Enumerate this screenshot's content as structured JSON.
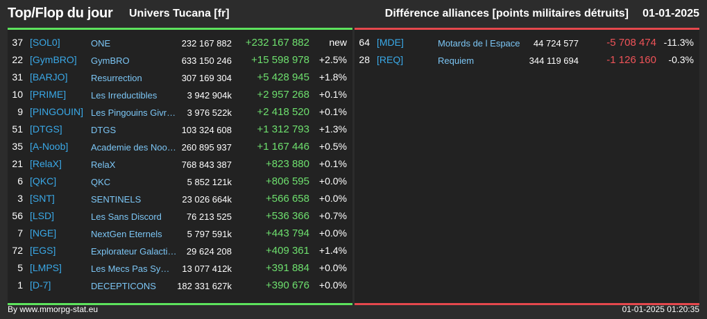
{
  "header": {
    "title": "Top/Flop du jour",
    "universe": "Univers Tucana [fr]",
    "mode": "Différence alliances [points militaires détruits]",
    "date": "01-01-2025"
  },
  "colors": {
    "top_accent": "#5de35d",
    "flop_accent": "#e5484d",
    "tag": "#3aa9e8",
    "name": "#7cc6f5"
  },
  "top": [
    {
      "rank": "37",
      "tag": "[SOL0]",
      "name": "ONE",
      "points": "232 167 882",
      "diff": "+232 167 882",
      "pct": "new"
    },
    {
      "rank": "22",
      "tag": "[GymBRO]",
      "name": "GymBRO",
      "points": "633 150 246",
      "diff": "+15 598 978",
      "pct": "+2.5%"
    },
    {
      "rank": "31",
      "tag": "[BARJO]",
      "name": "Resurrection",
      "points": "307 169 304",
      "diff": "+5 428 945",
      "pct": "+1.8%"
    },
    {
      "rank": "10",
      "tag": "[PRIME]",
      "name": "Les Irreductibles",
      "points": "3 942 904k",
      "diff": "+2 957 268",
      "pct": "+0.1%"
    },
    {
      "rank": "9",
      "tag": "[PINGOUIN]",
      "name": "Les Pingouins Givre…",
      "points": "3 976 522k",
      "diff": "+2 418 520",
      "pct": "+0.1%"
    },
    {
      "rank": "51",
      "tag": "[DTGS]",
      "name": "DTGS",
      "points": "103 324 608",
      "diff": "+1 312 793",
      "pct": "+1.3%"
    },
    {
      "rank": "35",
      "tag": "[A-Noob]",
      "name": "Academie des Noob…",
      "points": "260 895 937",
      "diff": "+1 167 446",
      "pct": "+0.5%"
    },
    {
      "rank": "21",
      "tag": "[RelaX]",
      "name": "RelaX",
      "points": "768 843 387",
      "diff": "+823 880",
      "pct": "+0.1%"
    },
    {
      "rank": "6",
      "tag": "[QKC]",
      "name": "QKC",
      "points": "5 852 121k",
      "diff": "+806 595",
      "pct": "+0.0%"
    },
    {
      "rank": "3",
      "tag": "[SNT]",
      "name": "SENTINELS",
      "points": "23 026 664k",
      "diff": "+566 658",
      "pct": "+0.0%"
    },
    {
      "rank": "56",
      "tag": "[LSD]",
      "name": "Les Sans Discord",
      "points": "76 213 525",
      "diff": "+536 366",
      "pct": "+0.7%"
    },
    {
      "rank": "7",
      "tag": "[NGE]",
      "name": "NextGen Eternels",
      "points": "5 797 591k",
      "diff": "+443 794",
      "pct": "+0.0%"
    },
    {
      "rank": "72",
      "tag": "[EGS]",
      "name": "Explorateur Galacti…",
      "points": "29 624 208",
      "diff": "+409 361",
      "pct": "+1.4%"
    },
    {
      "rank": "5",
      "tag": "[LMPS]",
      "name": "Les Mecs Pas Sy…",
      "points": "13 077 412k",
      "diff": "+391 884",
      "pct": "+0.0%"
    },
    {
      "rank": "1",
      "tag": "[D-7]",
      "name": "DECEPTICONS",
      "points": "182 331 627k",
      "diff": "+390 676",
      "pct": "+0.0%"
    }
  ],
  "flop": [
    {
      "rank": "64",
      "tag": "[MDE]",
      "name": "Motards de l Espace",
      "points": "44 724 577",
      "diff": "-5 708 474",
      "pct": "-11.3%"
    },
    {
      "rank": "28",
      "tag": "[REQ]",
      "name": "Requiem",
      "points": "344 119 694",
      "diff": "-1 126 160",
      "pct": "-0.3%"
    }
  ],
  "footer": {
    "credit": "By www.mmorpg-stat.eu",
    "timestamp": "01-01-2025 01:20:35"
  }
}
